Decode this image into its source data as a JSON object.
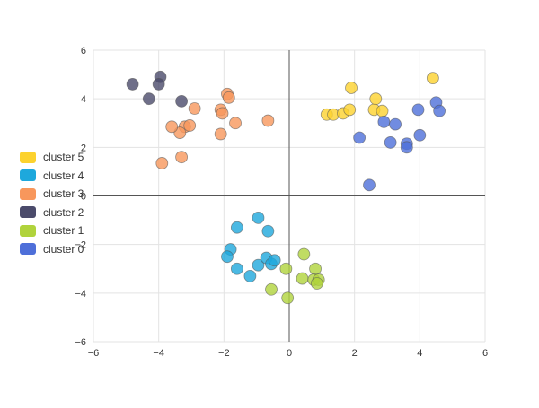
{
  "chart_data": {
    "type": "scatter",
    "title": "",
    "xlabel": "",
    "ylabel": "",
    "xlim": [
      -6,
      6
    ],
    "ylim": [
      -6,
      6
    ],
    "xticks": [
      -6,
      -4,
      -2,
      0,
      2,
      4,
      6
    ],
    "yticks": [
      -6,
      -4,
      -2,
      0,
      2,
      4,
      6
    ],
    "tick_labels_x": [
      "−6",
      "−4",
      "−2",
      "0",
      "2",
      "4",
      "6"
    ],
    "tick_labels_y": [
      "−6",
      "−4",
      "−2",
      "0",
      "2",
      "4",
      "6"
    ],
    "grid": true,
    "legend_position": "left",
    "series": [
      {
        "name": "cluster 5",
        "color": "#fcd22e",
        "points": [
          [
            1.15,
            3.35
          ],
          [
            1.35,
            3.35
          ],
          [
            1.65,
            3.4
          ],
          [
            1.85,
            3.55
          ],
          [
            1.9,
            4.45
          ],
          [
            2.6,
            3.55
          ],
          [
            2.65,
            4.0
          ],
          [
            2.85,
            3.5
          ],
          [
            4.4,
            4.85
          ]
        ]
      },
      {
        "name": "cluster 4",
        "color": "#1ea8dc",
        "points": [
          [
            -1.6,
            -1.3
          ],
          [
            -0.95,
            -0.9
          ],
          [
            -0.65,
            -1.45
          ],
          [
            -1.8,
            -2.2
          ],
          [
            -1.9,
            -2.5
          ],
          [
            -1.6,
            -3.0
          ],
          [
            -1.2,
            -3.3
          ],
          [
            -0.95,
            -2.85
          ],
          [
            -0.7,
            -2.55
          ],
          [
            -0.55,
            -2.8
          ],
          [
            -0.45,
            -2.65
          ]
        ]
      },
      {
        "name": "cluster 3",
        "color": "#f8975c",
        "points": [
          [
            -1.9,
            4.2
          ],
          [
            -1.85,
            4.05
          ],
          [
            -2.1,
            3.55
          ],
          [
            -2.05,
            3.4
          ],
          [
            -2.9,
            3.6
          ],
          [
            -3.2,
            2.85
          ],
          [
            -3.05,
            2.9
          ],
          [
            -3.35,
            2.6
          ],
          [
            -3.6,
            2.85
          ],
          [
            -1.65,
            3.0
          ],
          [
            -0.65,
            3.1
          ],
          [
            -2.1,
            2.55
          ],
          [
            -3.3,
            1.6
          ],
          [
            -3.9,
            1.35
          ]
        ]
      },
      {
        "name": "cluster 2",
        "color": "#4b4b6b",
        "points": [
          [
            -4.8,
            4.6
          ],
          [
            -4.3,
            4.0
          ],
          [
            -3.95,
            4.9
          ],
          [
            -4.0,
            4.6
          ],
          [
            -3.3,
            3.9
          ]
        ]
      },
      {
        "name": "cluster 1",
        "color": "#b0d33c",
        "points": [
          [
            0.45,
            -2.4
          ],
          [
            -0.1,
            -3.0
          ],
          [
            0.4,
            -3.4
          ],
          [
            0.8,
            -3.0
          ],
          [
            0.75,
            -3.45
          ],
          [
            0.9,
            -3.45
          ],
          [
            0.85,
            -3.6
          ],
          [
            -0.55,
            -3.85
          ],
          [
            -0.05,
            -4.2
          ]
        ]
      },
      {
        "name": "cluster 0",
        "color": "#4e6fd9",
        "points": [
          [
            2.15,
            2.4
          ],
          [
            2.9,
            3.05
          ],
          [
            3.25,
            2.95
          ],
          [
            3.1,
            2.2
          ],
          [
            3.6,
            2.15
          ],
          [
            3.6,
            2.0
          ],
          [
            4.0,
            2.5
          ],
          [
            3.95,
            3.55
          ],
          [
            4.5,
            3.85
          ],
          [
            4.6,
            3.5
          ],
          [
            2.45,
            0.45
          ]
        ]
      }
    ]
  }
}
